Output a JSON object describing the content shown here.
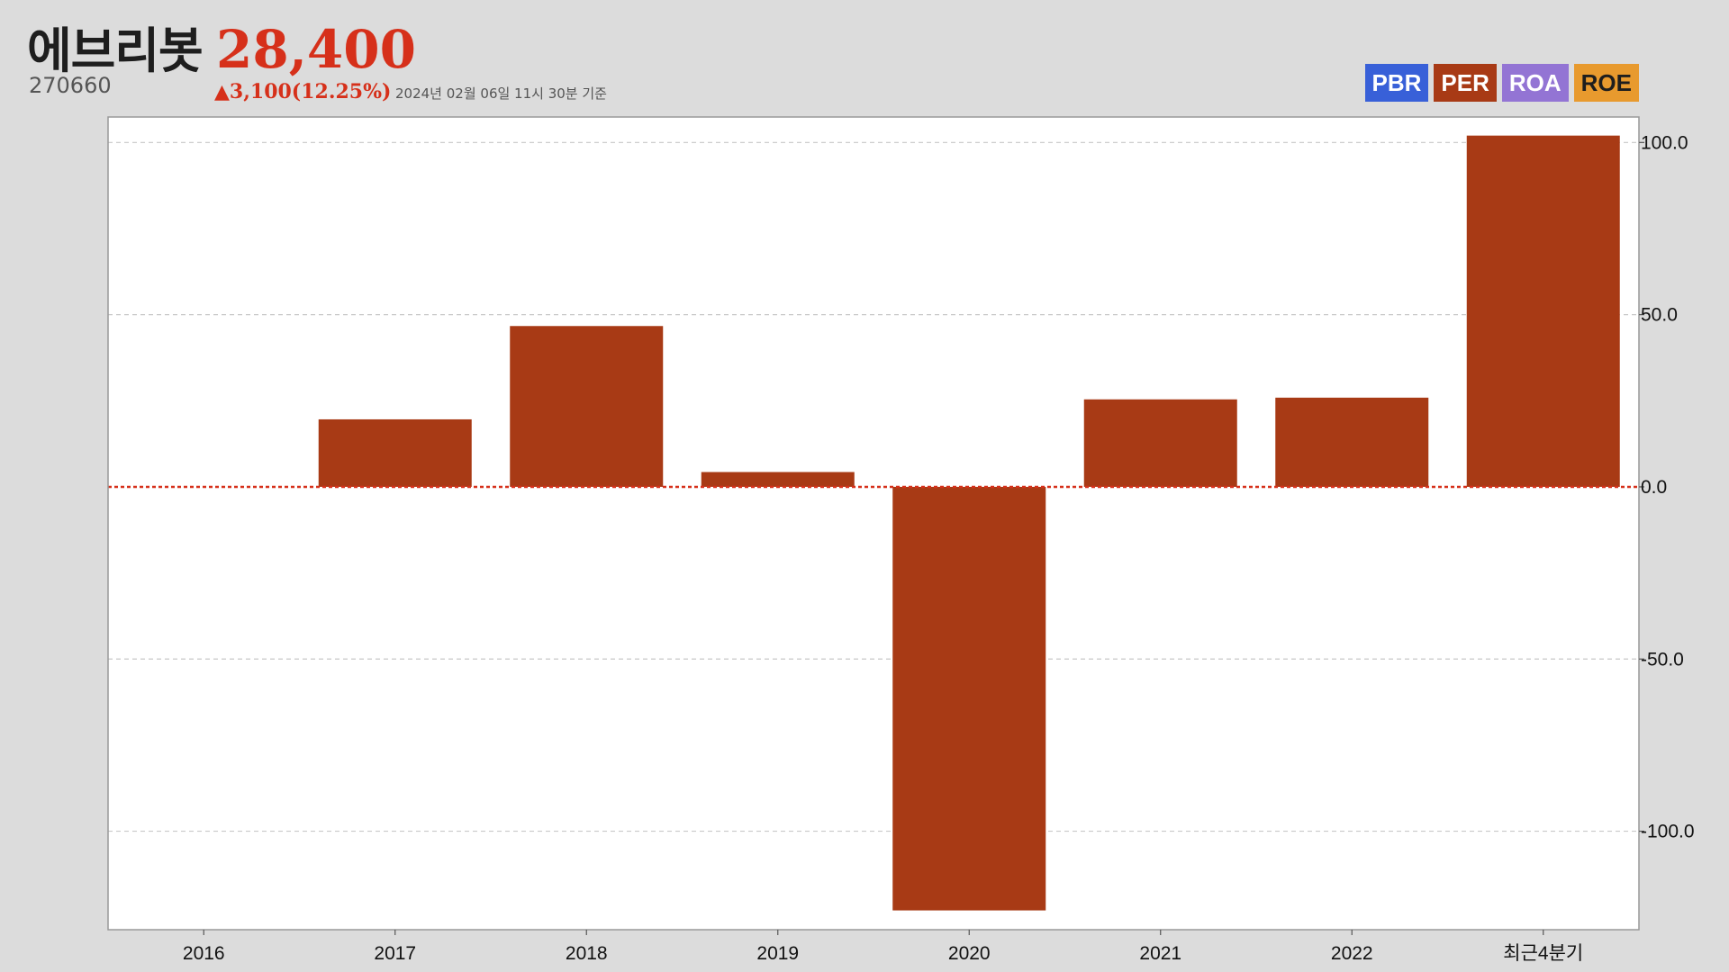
{
  "header": {
    "company_name": "에브리봇",
    "stock_code": "270660",
    "price": "28,400",
    "change": "▲3,100(12.25%)",
    "timestamp": "2024년 02월 06일 11시 30분 기준"
  },
  "badges": [
    {
      "label": "PBR",
      "color": "#3860d8"
    },
    {
      "label": "PER",
      "color": "#a83a15"
    },
    {
      "label": "ROA",
      "color": "#9374d4"
    },
    {
      "label": "ROE",
      "color": "#e89a2e"
    }
  ],
  "colors": {
    "bar": "#a83a15",
    "zero_line": "#d6301a",
    "grid": "#c8c8c8",
    "price": "#d6301a"
  },
  "chart_data": {
    "type": "bar",
    "metric": "PER",
    "categories": [
      "2016",
      "2017",
      "2018",
      "2019",
      "2020",
      "2021",
      "2022",
      "최근4분기"
    ],
    "values": [
      0,
      19.6,
      46.7,
      4.3,
      -123.0,
      25.4,
      25.9,
      102.0
    ],
    "ylim": [
      -128.6,
      107.4
    ],
    "yticks": [
      100,
      50,
      0,
      -50,
      -100
    ],
    "ytick_labels": [
      "100.0",
      "50.0",
      "0.0",
      "-50.0",
      "-100.0"
    ],
    "y_axis_position": "right",
    "grid": true,
    "title": "",
    "xlabel": "",
    "ylabel": ""
  }
}
